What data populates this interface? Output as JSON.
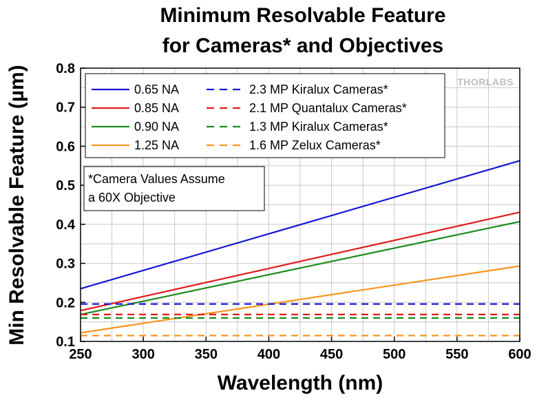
{
  "chart_data": {
    "type": "line",
    "title_lines": [
      "Minimum Resolvable Feature",
      "for Cameras* and Objectives"
    ],
    "xlabel": "Wavelength (nm)",
    "ylabel": "Min Resolvable Feature (µm)",
    "xlim": [
      250,
      600
    ],
    "ylim": [
      0.1,
      0.8
    ],
    "xticks": [
      250,
      300,
      350,
      400,
      450,
      500,
      550,
      600
    ],
    "yticks": [
      "0.1",
      "0.2",
      "0.3",
      "0.4",
      "0.5",
      "0.6",
      "0.7",
      "0.8"
    ],
    "grid": true,
    "legend_position": "top-left",
    "series": [
      {
        "name": "0.65 NA",
        "color": "#1515d6",
        "style": "solid",
        "x": [
          250,
          600
        ],
        "y": [
          0.235,
          0.563
        ]
      },
      {
        "name": "0.85 NA",
        "color": "#e01b1b",
        "style": "solid",
        "x": [
          250,
          600
        ],
        "y": [
          0.179,
          0.431
        ]
      },
      {
        "name": "0.90 NA",
        "color": "#1a8c1a",
        "style": "solid",
        "x": [
          250,
          600
        ],
        "y": [
          0.169,
          0.407
        ]
      },
      {
        "name": "1.25 NA",
        "color": "#f7941d",
        "style": "solid",
        "x": [
          250,
          600
        ],
        "y": [
          0.122,
          0.293
        ]
      },
      {
        "name": "2.3 MP Kiralux Cameras*",
        "color": "#1515d6",
        "style": "dashed",
        "x": [
          250,
          600
        ],
        "y": [
          0.196,
          0.196
        ]
      },
      {
        "name": "2.1 MP Quantalux Cameras*",
        "color": "#e01b1b",
        "style": "dashed",
        "x": [
          250,
          600
        ],
        "y": [
          0.169,
          0.169
        ]
      },
      {
        "name": "1.3 MP Kiralux Cameras*",
        "color": "#1a8c1a",
        "style": "dashed",
        "x": [
          250,
          600
        ],
        "y": [
          0.16,
          0.16
        ]
      },
      {
        "name": "1.6 MP Zelux Cameras*",
        "color": "#f7941d",
        "style": "dashed",
        "x": [
          250,
          600
        ],
        "y": [
          0.115,
          0.115
        ]
      }
    ],
    "legend_columns": [
      [
        "0.65 NA",
        "0.85 NA",
        "0.90 NA",
        "1.25 NA"
      ],
      [
        "2.3 MP Kiralux Cameras*",
        "2.1 MP Quantalux Cameras*",
        "1.3 MP Kiralux Cameras*",
        "1.6 MP Zelux Cameras*"
      ]
    ],
    "note_lines": [
      "*Camera Values Assume",
      "a 60X Objective"
    ],
    "watermark": "THORLABS"
  }
}
